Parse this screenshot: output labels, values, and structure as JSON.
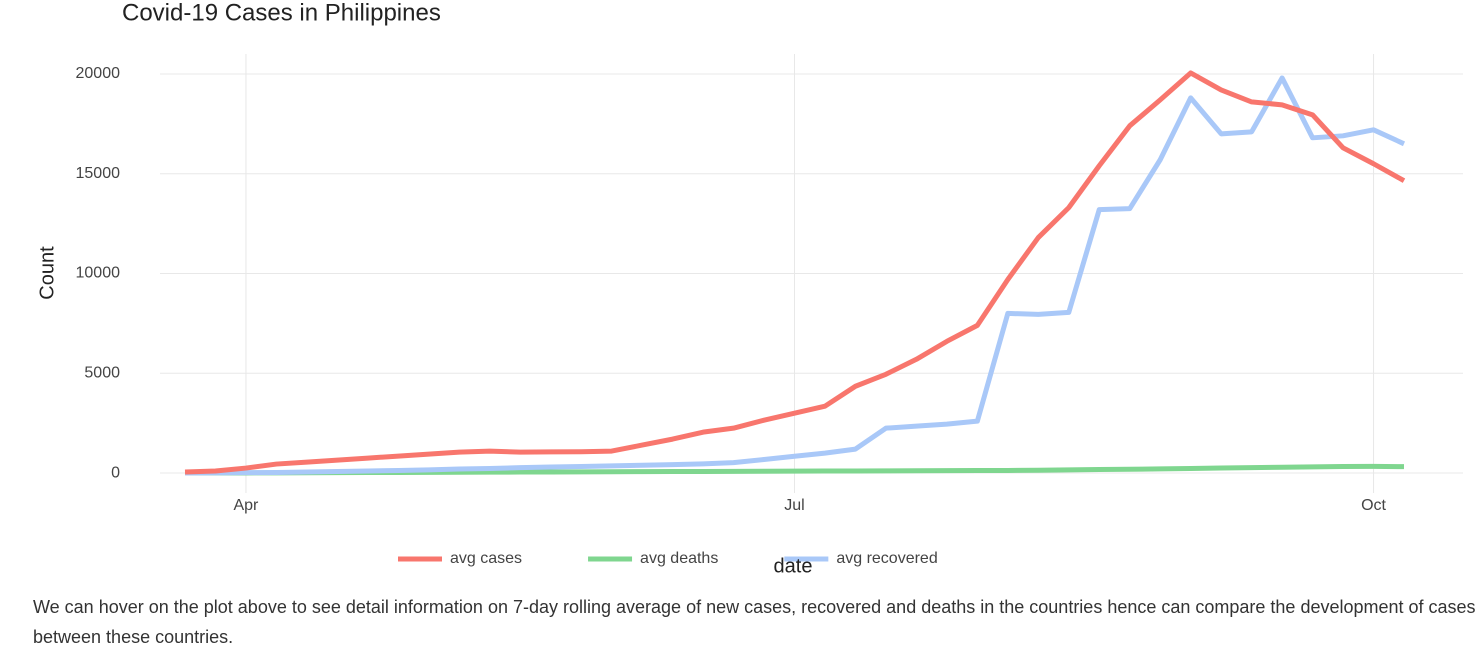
{
  "chart_data": {
    "type": "line",
    "title": "Covid-19 Cases in Philippines",
    "xlabel": "date",
    "ylabel": "Count",
    "categories": [
      null,
      null,
      "Apr",
      null,
      null,
      null,
      null,
      null,
      null,
      null,
      null,
      null,
      null,
      null,
      null,
      null,
      null,
      null,
      null,
      null,
      "Jul",
      null,
      null,
      null,
      null,
      null,
      null,
      null,
      null,
      null,
      null,
      null,
      null,
      null,
      null,
      null,
      null,
      null,
      null,
      "Oct",
      null
    ],
    "series": [
      {
        "name": "avg cases",
        "color": "#f8766d",
        "values": [
          50,
          100,
          250,
          450,
          550,
          650,
          750,
          850,
          950,
          1050,
          1100,
          1050,
          1060,
          1070,
          1100,
          1400,
          1700,
          2050,
          2250,
          2650,
          3000,
          3350,
          4350,
          4950,
          5700,
          6600,
          7400,
          9700,
          11800,
          13300,
          15400,
          17400,
          18700,
          20050,
          19200,
          18600,
          18450,
          17950,
          16300,
          15500,
          14650
        ]
      },
      {
        "name": "avg deaths",
        "color": "#7fd68f",
        "values": [
          0,
          2,
          5,
          10,
          15,
          20,
          25,
          30,
          35,
          40,
          45,
          50,
          55,
          60,
          65,
          70,
          75,
          80,
          85,
          90,
          95,
          100,
          105,
          110,
          115,
          120,
          125,
          130,
          140,
          160,
          175,
          190,
          210,
          230,
          250,
          270,
          290,
          310,
          330,
          335,
          320
        ]
      },
      {
        "name": "avg recovered",
        "color": "#a9c8f8",
        "values": [
          0,
          10,
          20,
          30,
          50,
          80,
          100,
          130,
          160,
          200,
          230,
          270,
          300,
          330,
          360,
          390,
          420,
          460,
          520,
          680,
          840,
          1000,
          1200,
          2250,
          2350,
          2450,
          2600,
          8000,
          7950,
          8050,
          13200,
          13250,
          15700,
          18800,
          17000,
          17100,
          19800,
          16800,
          16900,
          17200,
          16500
        ]
      }
    ],
    "ylim": [
      -1000,
      21000
    ],
    "yticks": [
      0,
      5000,
      10000,
      15000,
      20000
    ],
    "grid": true,
    "legend": "bottom"
  },
  "caption": "We can hover on the plot above to see detail information on 7-day rolling average of new cases, recovered and deaths in the countries hence can compare the development of cases between these countries."
}
